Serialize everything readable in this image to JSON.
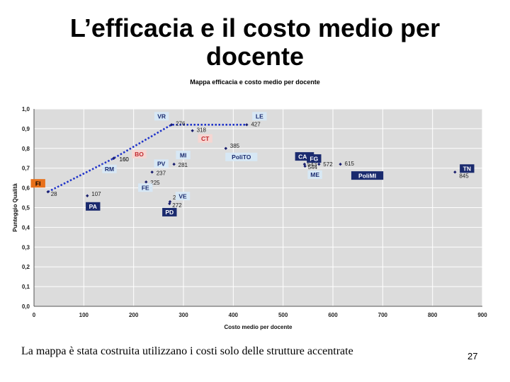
{
  "slide": {
    "title": "L’efficacia e il costo medio per docente",
    "footer": "La mappa è stata costruita utilizzano i costi solo delle strutture accentrate",
    "page_number": "27"
  },
  "colors": {
    "plot_bg": "#dcdcdc",
    "grid": "#ffffff",
    "marker": "#1a1f6e",
    "trend": "#1f33c9",
    "label_dark": "#1a2a6e",
    "label_light": "#d7e8f5",
    "label_light_text": "#1a2a6e",
    "label_orange": "#e8711b",
    "label_pink": "#f6d6d2",
    "label_pink_text": "#c0272d"
  },
  "chart_data": {
    "type": "scatter",
    "title": "Mappa efficacia e costo medio per docente",
    "xlabel": "Costo medio per docente",
    "ylabel": "Punteggio Qualità",
    "xlim": [
      0,
      900
    ],
    "ylim": [
      0,
      1.0
    ],
    "xticks": [
      "0",
      "100",
      "200",
      "300",
      "400",
      "500",
      "600",
      "700",
      "800",
      "900"
    ],
    "yticks": [
      "0,0",
      "0,1",
      "0,2",
      "0,3",
      "0,4",
      "0,5",
      "0,6",
      "0,7",
      "0,8",
      "0,9",
      "1,0"
    ],
    "grid": true,
    "points": [
      {
        "name": "FI",
        "x": 28,
        "y": 0.58,
        "value_label": "28",
        "style": "orange"
      },
      {
        "name": "PA",
        "x": 107,
        "y": 0.56,
        "value_label": "107",
        "style": "dark"
      },
      {
        "name": "RM",
        "x": 160,
        "y": 0.75,
        "value_label": "160",
        "style": "light"
      },
      {
        "name": "BO",
        "x": 160,
        "y": 0.75,
        "value_label": "160",
        "style": "pink"
      },
      {
        "name": "PV",
        "x": 237,
        "y": 0.68,
        "value_label": "237",
        "style": "light"
      },
      {
        "name": "FE",
        "x": 225,
        "y": 0.63,
        "value_label": "225",
        "style": "light"
      },
      {
        "name": "VE",
        "x": 273,
        "y": 0.53,
        "value_label": "273",
        "style": "light"
      },
      {
        "name": "PD",
        "x": 272,
        "y": 0.52,
        "value_label": "272",
        "style": "dark"
      },
      {
        "name": "VR",
        "x": 276,
        "y": 0.92,
        "value_label": "276",
        "style": "light"
      },
      {
        "name": "MI",
        "x": 281,
        "y": 0.72,
        "value_label": "281",
        "style": "light"
      },
      {
        "name": "CT",
        "x": 318,
        "y": 0.89,
        "value_label": "318",
        "style": "pink"
      },
      {
        "name": "PoliTO",
        "x": 385,
        "y": 0.8,
        "value_label": "385",
        "style": "light"
      },
      {
        "name": "LE",
        "x": 427,
        "y": 0.92,
        "value_label": "427",
        "style": "light"
      },
      {
        "name": "CAL",
        "x": 543,
        "y": 0.72,
        "value_label": "543",
        "style": "dark"
      },
      {
        "name": "ME",
        "x": 544,
        "y": 0.71,
        "value_label": "544",
        "style": "light"
      },
      {
        "name": "FG",
        "x": 572,
        "y": 0.72,
        "value_label": "572",
        "style": "dark"
      },
      {
        "name": "PoliMI",
        "x": 615,
        "y": 0.72,
        "value_label": "615",
        "style": "dark"
      },
      {
        "name": "TN",
        "x": 845,
        "y": 0.68,
        "value_label": "845",
        "style": "dark"
      }
    ],
    "trend_line": [
      {
        "x": 28,
        "y": 0.58
      },
      {
        "x": 160,
        "y": 0.75
      },
      {
        "x": 276,
        "y": 0.92
      },
      {
        "x": 427,
        "y": 0.92
      }
    ]
  }
}
